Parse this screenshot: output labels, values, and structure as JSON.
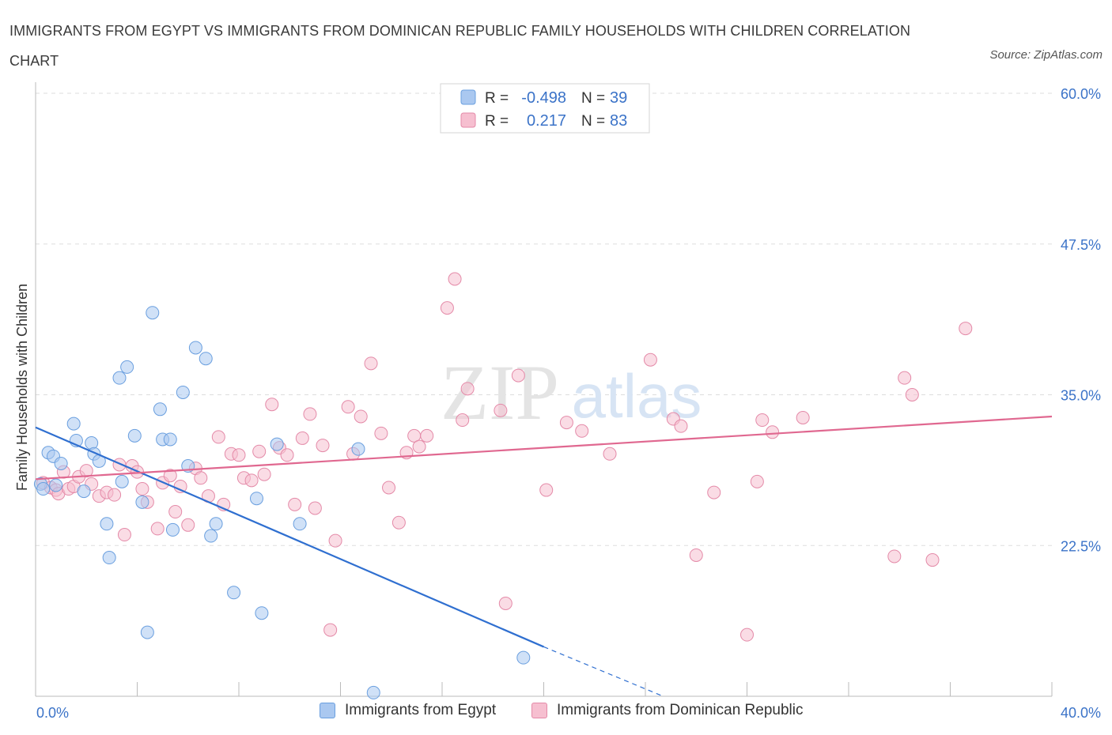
{
  "title": "IMMIGRANTS FROM EGYPT VS IMMIGRANTS FROM DOMINICAN REPUBLIC FAMILY HOUSEHOLDS WITH CHILDREN CORRELATION CHART",
  "source": "Source: ZipAtlas.com",
  "watermark": {
    "zip": "ZIP",
    "atlas": "atlas"
  },
  "colors": {
    "egypt_fill": "#aac8f0",
    "egypt_stroke": "#6a9fdf",
    "egypt_line": "#2f6fd0",
    "dr_fill": "#f6bfd0",
    "dr_stroke": "#e48aa8",
    "dr_line": "#e06890",
    "tick_label": "#3b73c8",
    "grid": "#dddddd"
  },
  "legend_top": [
    {
      "r_label": "R =",
      "r_value": "-0.498",
      "n_label": "N =",
      "n_value": "39"
    },
    {
      "r_label": "R =",
      "r_value": "0.217",
      "n_label": "N =",
      "n_value": "83"
    }
  ],
  "chart_data": {
    "type": "scatter",
    "ylabel": "Family Households with Children",
    "xlim": [
      0,
      40
    ],
    "ylim": [
      10,
      60
    ],
    "x_tick_labels": [
      {
        "value": 0,
        "label": "0.0%"
      },
      {
        "value": 40,
        "label": "40.0%"
      }
    ],
    "y_tick_labels": [
      {
        "value": 22.5,
        "label": "22.5%"
      },
      {
        "value": 35,
        "label": "35.0%"
      },
      {
        "value": 47.5,
        "label": "47.5%"
      },
      {
        "value": 60,
        "label": "60.0%"
      }
    ],
    "grid": "horizontal dashed",
    "series": [
      {
        "name": "Immigrants from Egypt",
        "trend": {
          "x0": 0,
          "y0": 32.3,
          "x1": 20.0,
          "y1": 14.1,
          "dashed_to_x": 24.7,
          "dashed_to_y": 10.0
        },
        "points": [
          [
            0.2,
            27.6
          ],
          [
            0.3,
            27.2
          ],
          [
            0.5,
            30.2
          ],
          [
            0.7,
            29.9
          ],
          [
            0.8,
            27.5
          ],
          [
            1.0,
            29.3
          ],
          [
            1.5,
            32.6
          ],
          [
            1.6,
            31.2
          ],
          [
            1.9,
            27.0
          ],
          [
            2.2,
            31.0
          ],
          [
            2.3,
            30.1
          ],
          [
            2.5,
            29.5
          ],
          [
            2.8,
            24.3
          ],
          [
            2.9,
            21.5
          ],
          [
            3.3,
            36.4
          ],
          [
            3.4,
            27.8
          ],
          [
            3.6,
            37.3
          ],
          [
            3.9,
            31.6
          ],
          [
            4.2,
            26.1
          ],
          [
            4.4,
            15.3
          ],
          [
            4.6,
            41.8
          ],
          [
            4.9,
            33.8
          ],
          [
            5.0,
            31.3
          ],
          [
            5.3,
            31.3
          ],
          [
            5.4,
            23.8
          ],
          [
            5.8,
            35.2
          ],
          [
            6.0,
            29.1
          ],
          [
            6.3,
            38.9
          ],
          [
            6.7,
            38.0
          ],
          [
            6.9,
            23.3
          ],
          [
            7.1,
            24.3
          ],
          [
            7.8,
            18.6
          ],
          [
            8.7,
            26.4
          ],
          [
            8.9,
            16.9
          ],
          [
            9.5,
            30.9
          ],
          [
            10.4,
            24.3
          ],
          [
            12.7,
            30.5
          ],
          [
            13.3,
            10.3
          ],
          [
            19.2,
            13.2
          ]
        ]
      },
      {
        "name": "Immigrants from Dominican Republic",
        "trend": {
          "x0": 0,
          "y0": 28.0,
          "x1": 40.0,
          "y1": 33.2
        },
        "points": [
          [
            0.3,
            27.7
          ],
          [
            0.6,
            27.3
          ],
          [
            0.8,
            27.1
          ],
          [
            0.9,
            26.8
          ],
          [
            1.1,
            28.6
          ],
          [
            1.3,
            27.2
          ],
          [
            1.5,
            27.4
          ],
          [
            1.7,
            28.2
          ],
          [
            2.0,
            28.7
          ],
          [
            2.2,
            27.6
          ],
          [
            2.5,
            26.6
          ],
          [
            2.8,
            26.9
          ],
          [
            3.1,
            26.7
          ],
          [
            3.3,
            29.2
          ],
          [
            3.5,
            23.4
          ],
          [
            3.8,
            29.1
          ],
          [
            4.0,
            28.6
          ],
          [
            4.2,
            27.2
          ],
          [
            4.4,
            26.1
          ],
          [
            4.8,
            23.9
          ],
          [
            5.0,
            27.7
          ],
          [
            5.3,
            28.3
          ],
          [
            5.5,
            25.3
          ],
          [
            5.7,
            27.4
          ],
          [
            6.0,
            24.2
          ],
          [
            6.3,
            28.9
          ],
          [
            6.5,
            28.1
          ],
          [
            6.8,
            26.6
          ],
          [
            7.2,
            31.5
          ],
          [
            7.4,
            25.9
          ],
          [
            7.7,
            30.1
          ],
          [
            8.0,
            30.0
          ],
          [
            8.2,
            28.1
          ],
          [
            8.5,
            27.9
          ],
          [
            8.8,
            30.3
          ],
          [
            9.0,
            28.4
          ],
          [
            9.3,
            34.2
          ],
          [
            9.6,
            30.6
          ],
          [
            9.9,
            30.0
          ],
          [
            10.2,
            25.9
          ],
          [
            10.5,
            31.4
          ],
          [
            10.8,
            33.4
          ],
          [
            11.0,
            25.6
          ],
          [
            11.3,
            30.8
          ],
          [
            11.8,
            22.9
          ],
          [
            11.6,
            15.5
          ],
          [
            12.3,
            34.0
          ],
          [
            12.5,
            30.1
          ],
          [
            12.8,
            33.2
          ],
          [
            13.2,
            37.6
          ],
          [
            13.6,
            31.8
          ],
          [
            13.9,
            27.3
          ],
          [
            14.3,
            24.4
          ],
          [
            14.6,
            30.2
          ],
          [
            14.9,
            31.6
          ],
          [
            15.1,
            30.7
          ],
          [
            15.4,
            31.6
          ],
          [
            16.2,
            42.2
          ],
          [
            16.5,
            44.6
          ],
          [
            16.8,
            32.9
          ],
          [
            17.0,
            35.5
          ],
          [
            18.3,
            33.7
          ],
          [
            18.5,
            17.7
          ],
          [
            19.0,
            36.6
          ],
          [
            20.1,
            27.1
          ],
          [
            20.9,
            32.7
          ],
          [
            21.5,
            32.0
          ],
          [
            22.6,
            30.1
          ],
          [
            24.2,
            37.9
          ],
          [
            25.1,
            33.0
          ],
          [
            25.4,
            32.4
          ],
          [
            26.0,
            21.7
          ],
          [
            26.7,
            26.9
          ],
          [
            28.0,
            15.1
          ],
          [
            28.4,
            27.8
          ],
          [
            28.6,
            32.9
          ],
          [
            29.0,
            31.9
          ],
          [
            30.2,
            33.1
          ],
          [
            33.8,
            21.6
          ],
          [
            34.2,
            36.4
          ],
          [
            34.5,
            35.0
          ],
          [
            35.3,
            21.3
          ],
          [
            36.6,
            40.5
          ]
        ]
      }
    ]
  },
  "legend_bottom": [
    {
      "label": "Immigrants from Egypt"
    },
    {
      "label": "Immigrants from Dominican Republic"
    }
  ]
}
